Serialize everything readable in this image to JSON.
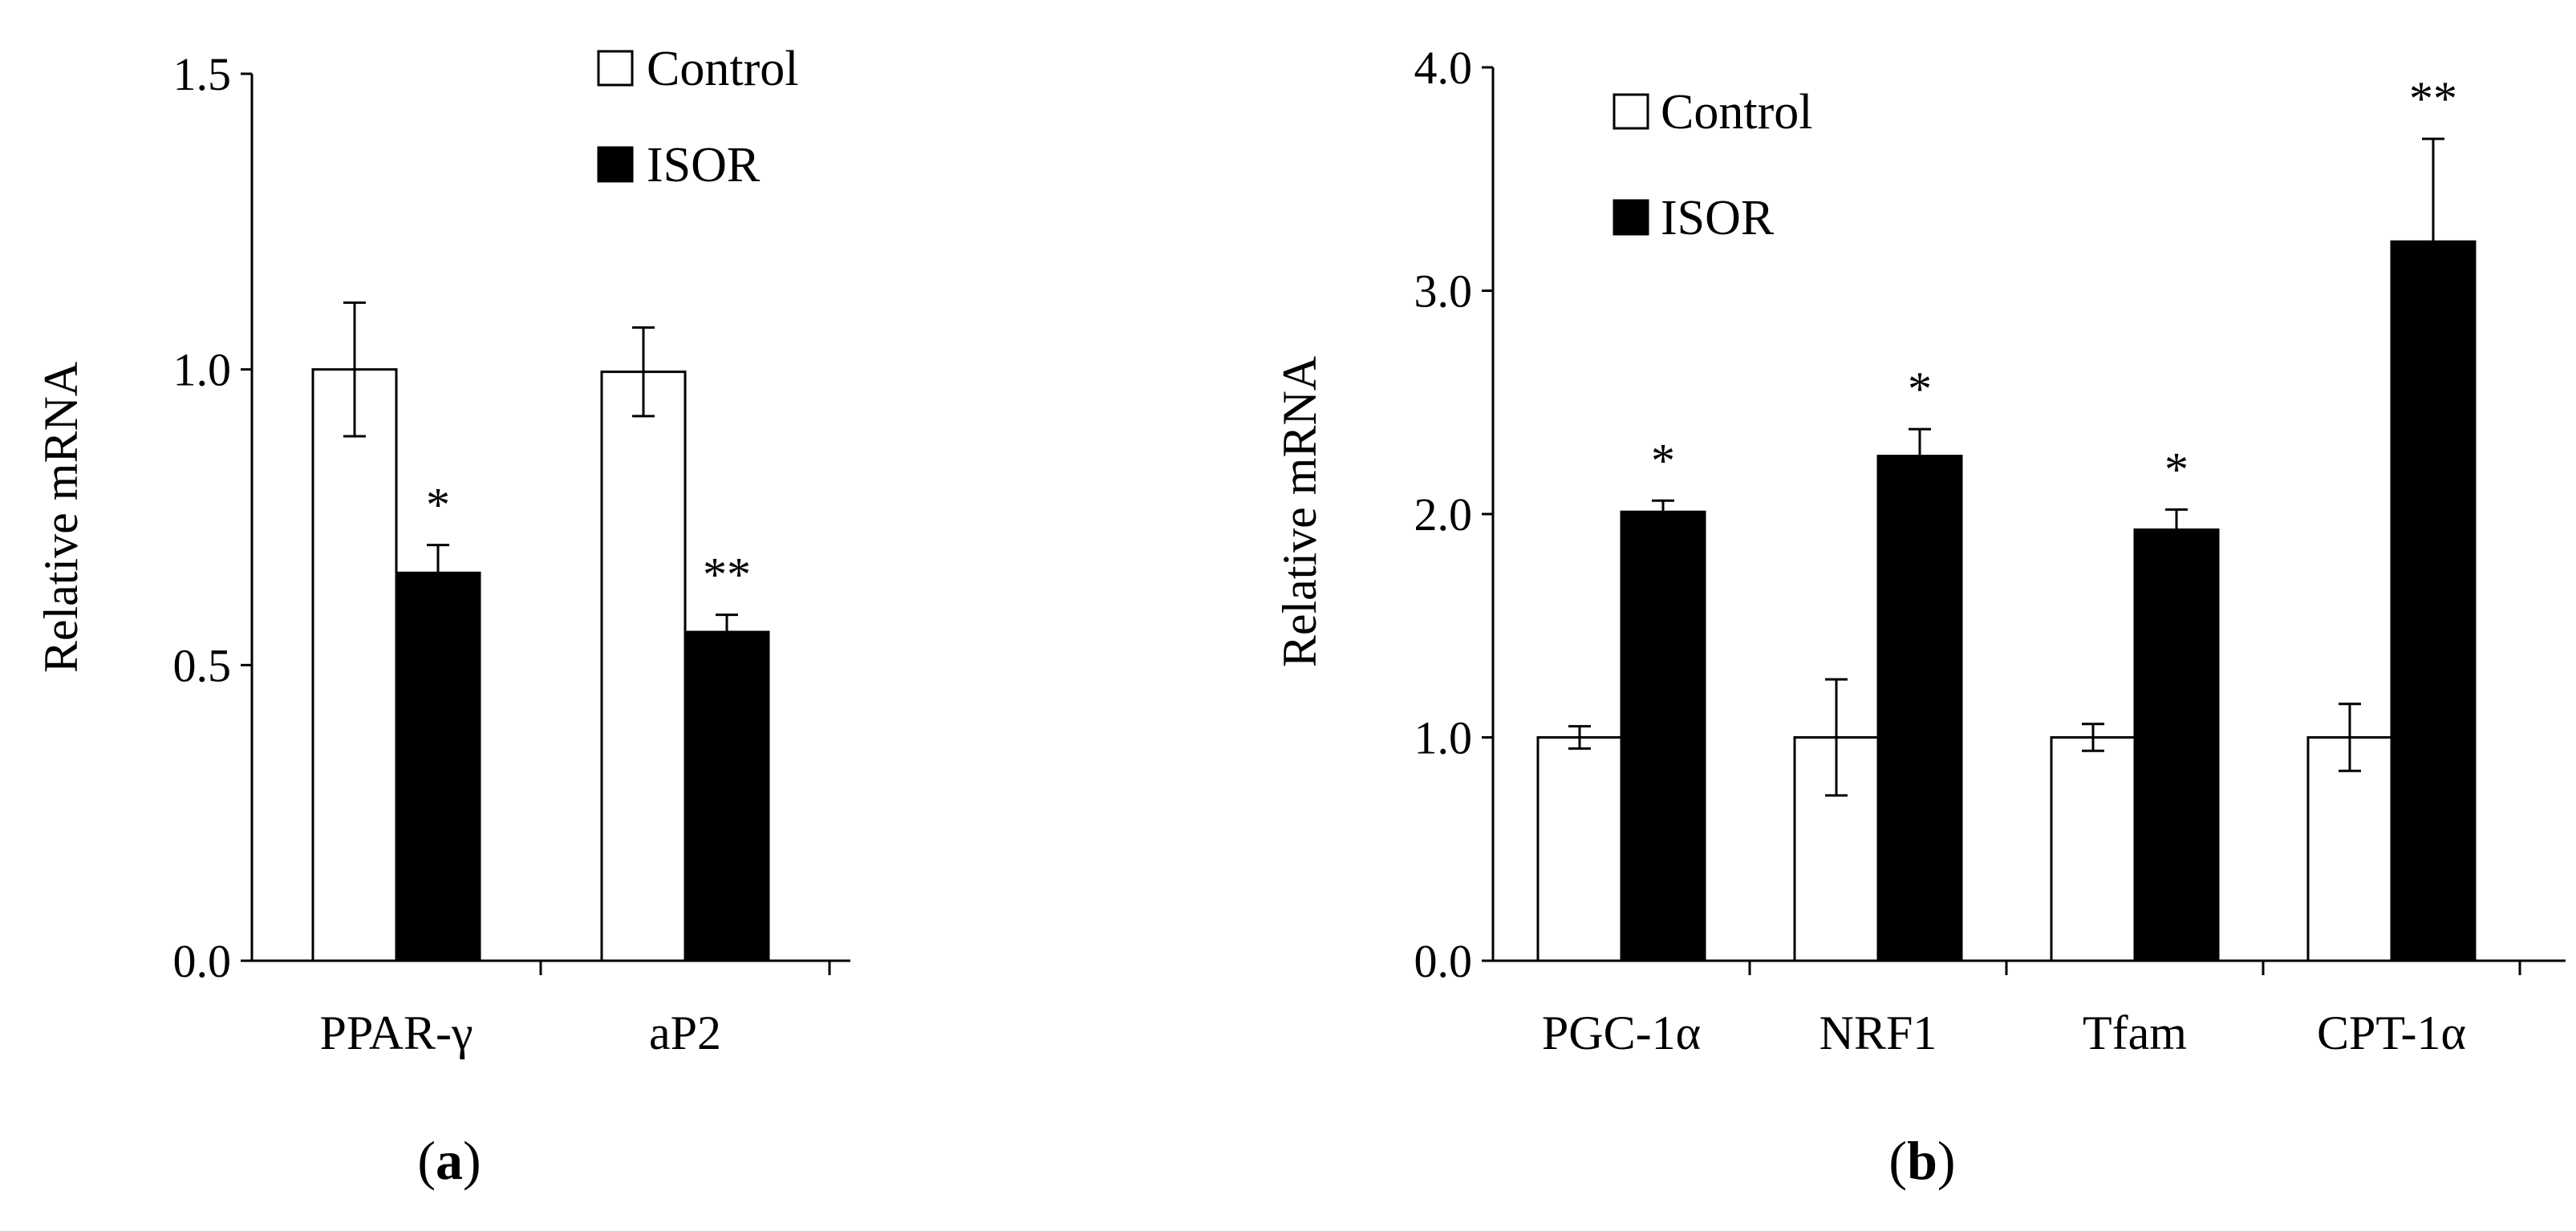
{
  "chart_data": [
    {
      "type": "bar",
      "panel_label": "a",
      "ylabel": "Relative mRNA",
      "xlabel": "",
      "ylim": [
        0,
        1.5
      ],
      "yticks": [
        "0.0",
        "0.5",
        "1.0",
        "1.5"
      ],
      "categories": [
        "PPAR-γ",
        "aP2"
      ],
      "series": [
        {
          "name": "Control",
          "color": "#ffffff",
          "values": [
            1.0,
            0.996
          ],
          "errors": [
            0.113,
            0.075
          ]
        },
        {
          "name": "ISOR",
          "color": "#000000",
          "values": [
            0.656,
            0.556
          ],
          "errors": [
            0.047,
            0.029
          ]
        }
      ],
      "significance": [
        {
          "category": "PPAR-γ",
          "series": "ISOR",
          "label": "*"
        },
        {
          "category": "aP2",
          "series": "ISOR",
          "label": "**"
        }
      ],
      "legend": {
        "position": "top-right",
        "entries": [
          "Control",
          "ISOR"
        ]
      }
    },
    {
      "type": "bar",
      "panel_label": "b",
      "ylabel": "Relative mRNA",
      "xlabel": "",
      "ylim": [
        0,
        4.0
      ],
      "yticks": [
        "0.0",
        "1.0",
        "2.0",
        "3.0",
        "4.0"
      ],
      "categories": [
        "PGC-1α",
        "NRF1",
        "Tfam",
        "CPT-1α"
      ],
      "series": [
        {
          "name": "Control",
          "color": "#ffffff",
          "values": [
            1.0,
            1.0,
            1.0,
            1.0
          ],
          "errors": [
            0.05,
            0.26,
            0.06,
            0.15
          ]
        },
        {
          "name": "ISOR",
          "color": "#000000",
          "values": [
            2.01,
            2.26,
            1.93,
            3.22
          ],
          "errors": [
            0.05,
            0.12,
            0.09,
            0.46
          ]
        }
      ],
      "significance": [
        {
          "category": "PGC-1α",
          "series": "ISOR",
          "label": "*"
        },
        {
          "category": "NRF1",
          "series": "ISOR",
          "label": "*"
        },
        {
          "category": "Tfam",
          "series": "ISOR",
          "label": "*"
        },
        {
          "category": "CPT-1α",
          "series": "ISOR",
          "label": "**"
        }
      ],
      "legend": {
        "position": "top-left",
        "entries": [
          "Control",
          "ISOR"
        ]
      }
    }
  ]
}
